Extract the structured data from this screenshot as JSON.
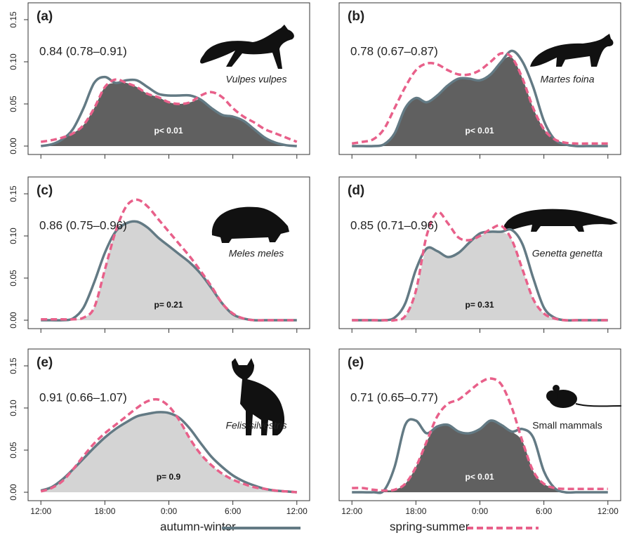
{
  "chart_data": [
    {
      "type": "line",
      "label": "(a)",
      "overlap": "0.84 (0.78–0.91)",
      "species": "Vulpes vulpes",
      "italic": true,
      "p": "p< 0.01",
      "overlap_color": "#606060",
      "x": [
        12,
        13,
        14,
        15,
        16,
        17,
        18,
        19,
        20,
        21,
        22,
        23,
        24,
        25,
        26,
        27,
        28,
        29,
        30,
        31,
        32,
        33,
        34,
        35,
        36
      ],
      "series": [
        {
          "name": "autumn-winter",
          "color": "#637a84",
          "dash": false,
          "values": [
            0,
            0.002,
            0.008,
            0.02,
            0.045,
            0.075,
            0.082,
            0.075,
            0.078,
            0.078,
            0.07,
            0.062,
            0.06,
            0.06,
            0.06,
            0.055,
            0.045,
            0.037,
            0.035,
            0.03,
            0.02,
            0.01,
            0.004,
            0.001,
            0
          ]
        },
        {
          "name": "spring-summer",
          "color": "#e8608a",
          "dash": true,
          "values": [
            0.005,
            0.007,
            0.01,
            0.015,
            0.025,
            0.045,
            0.07,
            0.079,
            0.075,
            0.07,
            0.062,
            0.058,
            0.052,
            0.05,
            0.052,
            0.06,
            0.064,
            0.058,
            0.045,
            0.035,
            0.028,
            0.02,
            0.015,
            0.01,
            0.005
          ]
        }
      ],
      "xlim": [
        10.8,
        37.2
      ],
      "xticks": [
        12,
        18,
        24,
        30,
        36
      ],
      "xtick_labels": false,
      "ylim": [
        -0.01,
        0.17
      ],
      "yticks": [
        {
          "value": 0,
          "label": "0.00"
        },
        {
          "value": 0.05,
          "label": "0.05"
        },
        {
          "value": 0.1,
          "label": "0.10"
        },
        {
          "value": 0.15,
          "label": "0.15"
        }
      ]
    },
    {
      "type": "line",
      "label": "(b)",
      "overlap": "0.78 (0.67–0.87)",
      "species": "Martes foina",
      "italic": true,
      "p": "p< 0.01",
      "overlap_color": "#606060",
      "x": [
        12,
        13,
        14,
        15,
        16,
        17,
        18,
        19,
        20,
        21,
        22,
        23,
        24,
        25,
        26,
        27,
        28,
        29,
        30,
        31,
        32,
        33,
        34,
        35,
        36
      ],
      "series": [
        {
          "name": "autumn-winter",
          "color": "#637a84",
          "dash": false,
          "values": [
            0,
            0,
            0,
            0.002,
            0.015,
            0.045,
            0.057,
            0.052,
            0.06,
            0.072,
            0.08,
            0.08,
            0.078,
            0.085,
            0.1,
            0.113,
            0.1,
            0.07,
            0.03,
            0.008,
            0.002,
            0,
            0,
            0,
            0
          ]
        },
        {
          "name": "spring-summer",
          "color": "#e8608a",
          "dash": true,
          "values": [
            0.003,
            0.005,
            0.008,
            0.02,
            0.045,
            0.07,
            0.09,
            0.098,
            0.097,
            0.09,
            0.085,
            0.085,
            0.09,
            0.1,
            0.11,
            0.105,
            0.08,
            0.045,
            0.02,
            0.008,
            0.004,
            0.003,
            0.003,
            0.003,
            0.003
          ]
        }
      ],
      "xlim": [
        10.8,
        37.2
      ],
      "xticks": [
        12,
        18,
        24,
        30,
        36
      ],
      "xtick_labels": false,
      "ylim": [
        -0.01,
        0.17
      ]
    },
    {
      "type": "line",
      "label": "(c)",
      "overlap": "0.86 (0.75–0.96)",
      "species": "Meles meles",
      "italic": true,
      "p": "p= 0.21",
      "overlap_color": "#d4d4d4",
      "x": [
        12,
        13,
        14,
        15,
        16,
        17,
        18,
        19,
        20,
        21,
        22,
        23,
        24,
        25,
        26,
        27,
        28,
        29,
        30,
        31,
        32,
        33,
        34,
        35,
        36
      ],
      "series": [
        {
          "name": "autumn-winter",
          "color": "#637a84",
          "dash": false,
          "values": [
            0,
            0,
            0,
            0.002,
            0.015,
            0.045,
            0.08,
            0.105,
            0.115,
            0.117,
            0.11,
            0.098,
            0.088,
            0.078,
            0.068,
            0.055,
            0.038,
            0.02,
            0.007,
            0.002,
            0,
            0,
            0,
            0,
            0
          ]
        },
        {
          "name": "spring-summer",
          "color": "#e8608a",
          "dash": true,
          "values": [
            0.001,
            0.001,
            0.001,
            0.001,
            0.003,
            0.015,
            0.06,
            0.105,
            0.135,
            0.143,
            0.135,
            0.12,
            0.105,
            0.09,
            0.075,
            0.058,
            0.04,
            0.02,
            0.008,
            0.002,
            0,
            0,
            0,
            0,
            0
          ]
        }
      ],
      "xlim": [
        10.8,
        37.2
      ],
      "xticks": [
        12,
        18,
        24,
        30,
        36
      ],
      "xtick_labels": false,
      "ylim": [
        -0.01,
        0.17
      ],
      "yticks": [
        {
          "value": 0,
          "label": "0.00"
        },
        {
          "value": 0.05,
          "label": "0.05"
        },
        {
          "value": 0.1,
          "label": "0.10"
        },
        {
          "value": 0.15,
          "label": "0.15"
        }
      ]
    },
    {
      "type": "line",
      "label": "(d)",
      "overlap": "0.85 (0.71–0.96)",
      "species": "Genetta genetta",
      "italic": true,
      "p": "p= 0.31",
      "overlap_color": "#d4d4d4",
      "x": [
        12,
        13,
        14,
        15,
        16,
        17,
        18,
        19,
        20,
        21,
        22,
        23,
        24,
        25,
        26,
        27,
        28,
        29,
        30,
        31,
        32,
        33,
        34,
        35,
        36
      ],
      "series": [
        {
          "name": "autumn-winter",
          "color": "#637a84",
          "dash": false,
          "values": [
            0,
            0,
            0,
            0,
            0.003,
            0.02,
            0.06,
            0.085,
            0.082,
            0.075,
            0.08,
            0.092,
            0.103,
            0.105,
            0.105,
            0.107,
            0.09,
            0.05,
            0.015,
            0.003,
            0,
            0,
            0,
            0,
            0
          ]
        },
        {
          "name": "spring-summer",
          "color": "#e8608a",
          "dash": true,
          "values": [
            0,
            0,
            0,
            0,
            0,
            0.005,
            0.035,
            0.1,
            0.128,
            0.115,
            0.098,
            0.095,
            0.1,
            0.108,
            0.112,
            0.095,
            0.06,
            0.025,
            0.008,
            0.002,
            0,
            0,
            0,
            0,
            0
          ]
        }
      ],
      "xlim": [
        10.8,
        37.2
      ],
      "xticks": [
        12,
        18,
        24,
        30,
        36
      ],
      "xtick_labels": false,
      "ylim": [
        -0.01,
        0.17
      ]
    },
    {
      "type": "line",
      "label": "(e)",
      "overlap": "0.91 (0.66–1.07)",
      "species": "Felis silvestris",
      "italic": true,
      "p": "p= 0.9",
      "overlap_color": "#d4d4d4",
      "x": [
        12,
        13,
        14,
        15,
        16,
        17,
        18,
        19,
        20,
        21,
        22,
        23,
        24,
        25,
        26,
        27,
        28,
        29,
        30,
        31,
        32,
        33,
        34,
        35,
        36
      ],
      "series": [
        {
          "name": "autumn-winter",
          "color": "#637a84",
          "dash": false,
          "values": [
            0.002,
            0.006,
            0.015,
            0.027,
            0.04,
            0.053,
            0.065,
            0.075,
            0.083,
            0.09,
            0.093,
            0.095,
            0.094,
            0.088,
            0.075,
            0.058,
            0.042,
            0.03,
            0.02,
            0.013,
            0.008,
            0.004,
            0.002,
            0.001,
            0
          ]
        },
        {
          "name": "spring-summer",
          "color": "#e8608a",
          "dash": true,
          "values": [
            0.001,
            0.005,
            0.013,
            0.027,
            0.043,
            0.058,
            0.07,
            0.08,
            0.09,
            0.1,
            0.108,
            0.11,
            0.102,
            0.085,
            0.063,
            0.045,
            0.032,
            0.022,
            0.015,
            0.01,
            0.006,
            0.004,
            0.002,
            0.001,
            0
          ]
        }
      ],
      "xlim": [
        10.8,
        37.2
      ],
      "xticks": [
        {
          "value": 12,
          "label": "12:00"
        },
        {
          "value": 18,
          "label": "18:00"
        },
        {
          "value": 24,
          "label": "0:00"
        },
        {
          "value": 30,
          "label": "6:00"
        },
        {
          "value": 36,
          "label": "12:00"
        }
      ],
      "xtick_labels": true,
      "ylim": [
        -0.01,
        0.17
      ],
      "yticks": [
        {
          "value": 0,
          "label": "0.00"
        },
        {
          "value": 0.05,
          "label": "0.05"
        },
        {
          "value": 0.1,
          "label": "0.10"
        },
        {
          "value": 0.15,
          "label": "0.15"
        }
      ]
    },
    {
      "type": "line",
      "label": "(e)",
      "overlap": "0.71 (0.65–0.77)",
      "species": "Small mammals",
      "italic": false,
      "p": "p< 0.01",
      "overlap_color": "#606060",
      "x": [
        12,
        13,
        14,
        15,
        16,
        17,
        18,
        19,
        20,
        21,
        22,
        23,
        24,
        25,
        26,
        27,
        28,
        29,
        30,
        31,
        32,
        33,
        34,
        35,
        36
      ],
      "series": [
        {
          "name": "autumn-winter",
          "color": "#637a84",
          "dash": false,
          "values": [
            0,
            0,
            0,
            0.002,
            0.03,
            0.08,
            0.085,
            0.07,
            0.078,
            0.08,
            0.072,
            0.07,
            0.075,
            0.085,
            0.08,
            0.072,
            0.075,
            0.065,
            0.025,
            0.005,
            0,
            0,
            0,
            0,
            0
          ]
        },
        {
          "name": "spring-summer",
          "color": "#e8608a",
          "dash": true,
          "values": [
            0.005,
            0.005,
            0.003,
            0.002,
            0.003,
            0.01,
            0.03,
            0.06,
            0.09,
            0.105,
            0.11,
            0.12,
            0.13,
            0.135,
            0.128,
            0.1,
            0.06,
            0.025,
            0.01,
            0.005,
            0.004,
            0.004,
            0.004,
            0.004,
            0.004
          ]
        }
      ],
      "xlim": [
        10.8,
        37.2
      ],
      "xticks": [
        {
          "value": 12,
          "label": "12:00"
        },
        {
          "value": 18,
          "label": "18:00"
        },
        {
          "value": 24,
          "label": "0:00"
        },
        {
          "value": 30,
          "label": "6:00"
        },
        {
          "value": 36,
          "label": "12:00"
        }
      ],
      "xtick_labels": true,
      "ylim": [
        -0.01,
        0.17
      ]
    }
  ]
}
